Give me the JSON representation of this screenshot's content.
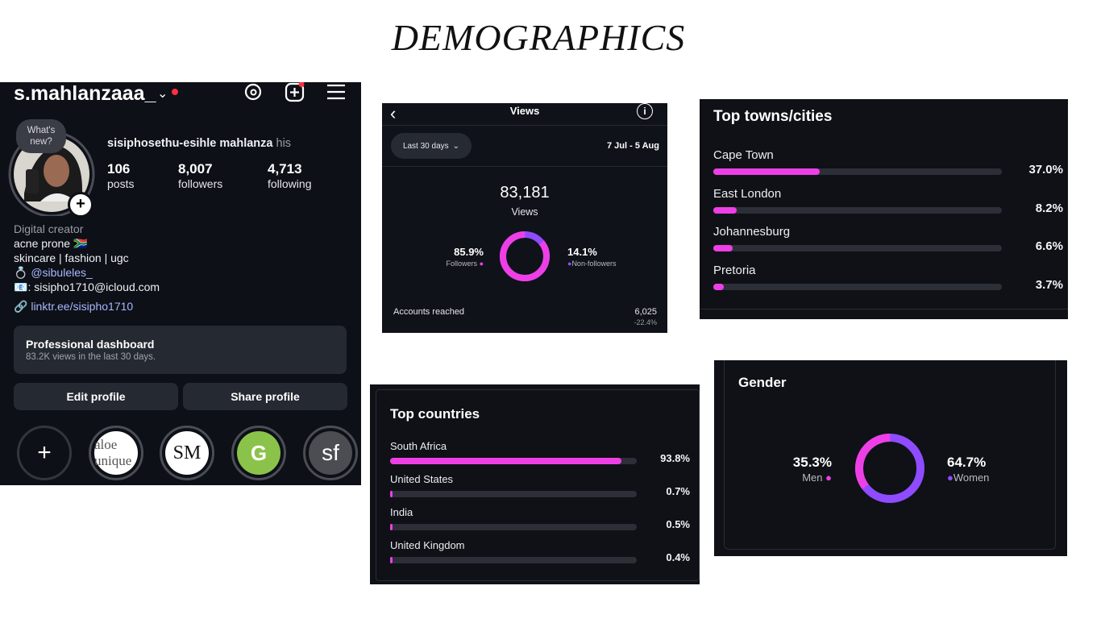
{
  "page_title": "DEMOGRAPHICS",
  "profile": {
    "username": "s.mahlanzaaa_",
    "whats_new": "What's\nnew?",
    "display_name": "sisiphosethu-esihle mahlanza",
    "pronouns": "his",
    "stats": [
      {
        "value": "106",
        "label": "posts"
      },
      {
        "value": "8,007",
        "label": "followers"
      },
      {
        "value": "4,713",
        "label": "following"
      }
    ],
    "category": "Digital creator",
    "bio_line1": "acne prone 🇿🇦",
    "bio_line2": "skincare | fashion | ugc",
    "bio_mention": "@sibuleles_",
    "bio_email": ": sisipho1710@icloud.com",
    "link": "linktr.ee/sisipho1710",
    "dashboard_title": "Professional dashboard",
    "dashboard_sub": "83.2K views in the last 30 days.",
    "edit_button": "Edit profile",
    "share_button": "Share profile",
    "highlights": [
      "aloe unique",
      "SM",
      "G",
      "sf"
    ]
  },
  "views": {
    "header": "Views",
    "range_button": "Last 30 days",
    "date_range": "7 Jul - 5 Aug",
    "total": "83,181",
    "total_label": "Views",
    "followers_pct": "85.9%",
    "followers_label": "Followers",
    "nonfollowers_pct": "14.1%",
    "nonfollowers_label": "Non-followers",
    "accounts_label": "Accounts reached",
    "accounts_value": "6,025",
    "accounts_change": "-22.4%",
    "followers_fraction": 0.859
  },
  "towns": {
    "title": "Top towns/cities",
    "rows": [
      {
        "name": "Cape Town",
        "pct": "37.0%",
        "value": 37.0
      },
      {
        "name": "East London",
        "pct": "8.2%",
        "value": 8.2
      },
      {
        "name": "Johannesburg",
        "pct": "6.6%",
        "value": 6.6
      },
      {
        "name": "Pretoria",
        "pct": "3.7%",
        "value": 3.7
      }
    ]
  },
  "countries": {
    "title": "Top countries",
    "rows": [
      {
        "name": "South Africa",
        "pct": "93.8%",
        "value": 93.8
      },
      {
        "name": "United States",
        "pct": "0.7%",
        "value": 0.7
      },
      {
        "name": "India",
        "pct": "0.5%",
        "value": 0.5
      },
      {
        "name": "United Kingdom",
        "pct": "0.4%",
        "value": 0.4
      }
    ]
  },
  "gender": {
    "title": "Gender",
    "men_pct": "35.3%",
    "men_label": "Men",
    "women_pct": "64.7%",
    "women_label": "Women",
    "men_fraction": 0.353
  },
  "colors": {
    "magenta": "#ee3fe6",
    "purple": "#8f4bff",
    "panel": "#0f1117",
    "link": "#9fb4ff"
  }
}
